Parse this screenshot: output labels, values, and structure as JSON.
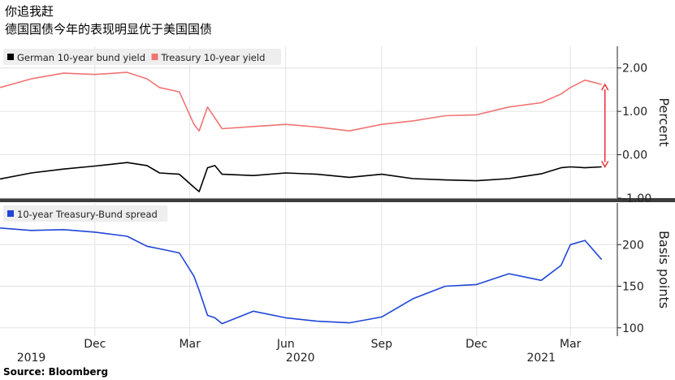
{
  "title": "你追我赶",
  "subtitle": "德国国债今年的表现明显优于美国国债",
  "source": "Source: Bloomberg",
  "x_labels": [
    {
      "label": "Dec",
      "date": "2019-12-01"
    },
    {
      "label": "Mar",
      "date": "2020-03-01"
    },
    {
      "label": "Jun",
      "date": "2020-06-01"
    },
    {
      "label": "Sep",
      "date": "2020-09-01"
    },
    {
      "label": "Dec",
      "date": "2020-12-01"
    },
    {
      "label": "Mar",
      "date": "2021-03-01"
    }
  ],
  "year_labels": [
    {
      "label": "2019",
      "date": "2019-10-01"
    },
    {
      "label": "2020",
      "date": "2020-06-15"
    },
    {
      "label": "2021",
      "date": "2021-02-01"
    }
  ],
  "chart_data": [
    {
      "type": "line",
      "ylabel": "Percent",
      "ylim": [
        -1.0,
        2.5
      ],
      "yticks": [
        -1.0,
        0.0,
        1.0,
        2.0
      ],
      "ytick_labels": [
        "-1.00",
        "0.00",
        "1.00",
        "2.00"
      ],
      "legend_position": "top-left",
      "grid": true,
      "series": [
        {
          "name": "German 10-year bund yield",
          "color": "#000000",
          "x": [
            "2019-09-01",
            "2019-10-01",
            "2019-11-01",
            "2019-12-01",
            "2020-01-01",
            "2020-01-20",
            "2020-02-01",
            "2020-02-20",
            "2020-03-05",
            "2020-03-10",
            "2020-03-18",
            "2020-03-25",
            "2020-04-01",
            "2020-05-01",
            "2020-06-01",
            "2020-07-01",
            "2020-08-01",
            "2020-09-01",
            "2020-10-01",
            "2020-11-01",
            "2020-12-01",
            "2021-01-01",
            "2021-02-01",
            "2021-02-20",
            "2021-03-01",
            "2021-03-15",
            "2021-03-31"
          ],
          "values": [
            -0.56,
            -0.42,
            -0.33,
            -0.26,
            -0.18,
            -0.25,
            -0.42,
            -0.45,
            -0.75,
            -0.85,
            -0.3,
            -0.25,
            -0.45,
            -0.48,
            -0.42,
            -0.45,
            -0.52,
            -0.45,
            -0.55,
            -0.58,
            -0.6,
            -0.55,
            -0.44,
            -0.3,
            -0.28,
            -0.3,
            -0.28
          ]
        },
        {
          "name": "Treasury 10-year yield",
          "color": "#f07474",
          "x": [
            "2019-09-01",
            "2019-10-01",
            "2019-11-01",
            "2019-12-01",
            "2020-01-01",
            "2020-01-20",
            "2020-02-01",
            "2020-02-20",
            "2020-03-05",
            "2020-03-10",
            "2020-03-18",
            "2020-03-25",
            "2020-04-01",
            "2020-05-01",
            "2020-06-01",
            "2020-07-01",
            "2020-08-01",
            "2020-09-01",
            "2020-10-01",
            "2020-11-01",
            "2020-12-01",
            "2021-01-01",
            "2021-02-01",
            "2021-02-20",
            "2021-03-01",
            "2021-03-15",
            "2021-03-31"
          ],
          "values": [
            1.55,
            1.75,
            1.88,
            1.85,
            1.9,
            1.75,
            1.55,
            1.45,
            0.7,
            0.55,
            1.1,
            0.85,
            0.6,
            0.65,
            0.7,
            0.64,
            0.55,
            0.7,
            0.78,
            0.9,
            0.92,
            1.1,
            1.2,
            1.4,
            1.55,
            1.72,
            1.62
          ]
        }
      ],
      "annotation": {
        "type": "double-arrow",
        "x": "2021-03-31",
        "from": -0.28,
        "to": 1.62,
        "color": "#e8313a"
      }
    },
    {
      "type": "line",
      "ylabel": "Basis points",
      "ylim": [
        90,
        250
      ],
      "yticks": [
        100,
        150,
        200
      ],
      "ytick_labels": [
        "100",
        "150",
        "200"
      ],
      "legend_position": "top-left",
      "grid": true,
      "series": [
        {
          "name": "10-year Treasury-Bund spread",
          "color": "#1f46d6",
          "x": [
            "2019-09-01",
            "2019-10-01",
            "2019-11-01",
            "2019-12-01",
            "2020-01-01",
            "2020-01-20",
            "2020-02-01",
            "2020-02-20",
            "2020-03-05",
            "2020-03-10",
            "2020-03-18",
            "2020-03-25",
            "2020-04-01",
            "2020-05-01",
            "2020-06-01",
            "2020-07-01",
            "2020-08-01",
            "2020-09-01",
            "2020-10-01",
            "2020-11-01",
            "2020-12-01",
            "2021-01-01",
            "2021-02-01",
            "2021-02-20",
            "2021-03-01",
            "2021-03-15",
            "2021-03-31"
          ],
          "values": [
            220,
            217,
            218,
            215,
            210,
            198,
            195,
            190,
            162,
            145,
            115,
            112,
            105,
            120,
            112,
            108,
            106,
            113,
            135,
            150,
            152,
            165,
            157,
            175,
            200,
            205,
            182
          ]
        }
      ]
    }
  ]
}
